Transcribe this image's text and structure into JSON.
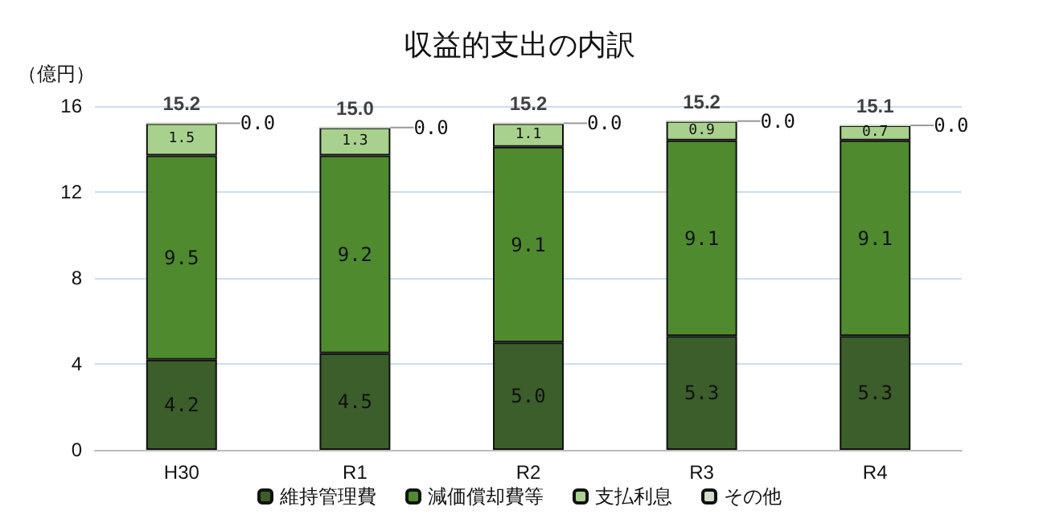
{
  "chart_data": {
    "type": "bar",
    "title": "収益的支出の内訳",
    "ylabel": "（億円）",
    "categories": [
      "H30",
      "R1",
      "R2",
      "R3",
      "R4"
    ],
    "stacked": true,
    "series": [
      {
        "name": "維持管理費",
        "color": "#3b5e2b",
        "values": [
          4.2,
          4.5,
          5.0,
          5.3,
          5.3
        ],
        "value_labels": [
          "4.2",
          "4.5",
          "5.0",
          "5.3",
          "5.3"
        ]
      },
      {
        "name": "減価償却費等",
        "color": "#4f8a2f",
        "values": [
          9.5,
          9.2,
          9.1,
          9.1,
          9.1
        ],
        "value_labels": [
          "9.5",
          "9.2",
          "9.1",
          "9.1",
          "9.1"
        ]
      },
      {
        "name": "支払利息",
        "color": "#a9d18e",
        "values": [
          1.5,
          1.3,
          1.1,
          0.9,
          0.7
        ],
        "value_labels": [
          "1.5",
          "1.3",
          "1.1",
          "0.9",
          "0.7"
        ]
      },
      {
        "name": "その他",
        "color": "#d2dcc9",
        "values": [
          0.0,
          0.0,
          0.0,
          0.0,
          0.0
        ],
        "value_labels": [
          "0.0",
          "0.0",
          "0.0",
          "0.0",
          "0.0"
        ]
      }
    ],
    "totals": [
      "15.2",
      "15.0",
      "15.2",
      "15.2",
      "15.1"
    ],
    "ylim": [
      0,
      16
    ],
    "yticks": [
      0,
      4,
      8,
      12,
      16
    ],
    "grid": "y",
    "legend": "bottom"
  }
}
